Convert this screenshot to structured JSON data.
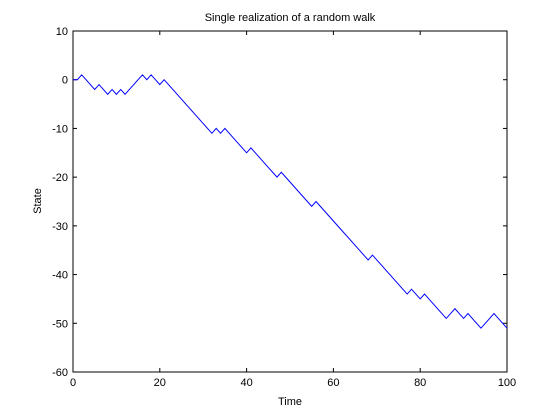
{
  "chart_data": {
    "type": "line",
    "title": "Single realization of a random walk",
    "xlabel": "Time",
    "ylabel": "State",
    "xlim": [
      0,
      100
    ],
    "ylim": [
      -60,
      10
    ],
    "xticks": [
      0,
      20,
      40,
      60,
      80,
      100
    ],
    "yticks": [
      10,
      0,
      -10,
      -20,
      -30,
      -40,
      -50,
      -60
    ],
    "grid": false,
    "series": [
      {
        "color": "#0000ff",
        "x": [
          0,
          1,
          2,
          3,
          4,
          5,
          6,
          7,
          8,
          9,
          10,
          11,
          12,
          13,
          14,
          15,
          16,
          17,
          18,
          19,
          20,
          21,
          22,
          23,
          24,
          25,
          26,
          27,
          28,
          29,
          30,
          31,
          32,
          33,
          34,
          35,
          36,
          37,
          38,
          39,
          40,
          41,
          42,
          43,
          44,
          45,
          46,
          47,
          48,
          49,
          50,
          51,
          52,
          53,
          54,
          55,
          56,
          57,
          58,
          59,
          60,
          61,
          62,
          63,
          64,
          65,
          66,
          67,
          68,
          69,
          70,
          71,
          72,
          73,
          74,
          75,
          76,
          77,
          78,
          79,
          80,
          81,
          82,
          83,
          84,
          85,
          86,
          87,
          88,
          89,
          90,
          91,
          92,
          93,
          94,
          95,
          96,
          97,
          98,
          99,
          100
        ],
        "values": [
          0,
          0,
          1,
          0,
          -1,
          -2,
          -1,
          -2,
          -3,
          -2,
          -3,
          -2,
          -3,
          -2,
          -1,
          0,
          1,
          0,
          1,
          0,
          -1,
          0,
          -1,
          -2,
          -3,
          -4,
          -5,
          -6,
          -7,
          -8,
          -9,
          -10,
          -11,
          -10,
          -11,
          -10,
          -11,
          -12,
          -13,
          -14,
          -15,
          -14,
          -15,
          -16,
          -17,
          -18,
          -19,
          -20,
          -19,
          -20,
          -21,
          -22,
          -23,
          -24,
          -25,
          -26,
          -25,
          -26,
          -27,
          -28,
          -29,
          -30,
          -31,
          -32,
          -33,
          -34,
          -35,
          -36,
          -37,
          -36,
          -37,
          -38,
          -39,
          -40,
          -41,
          -42,
          -43,
          -44,
          -43,
          -44,
          -45,
          -44,
          -45,
          -46,
          -47,
          -48,
          -49,
          -48,
          -47,
          -48,
          -49,
          -48,
          -49,
          -50,
          -51,
          -50,
          -49,
          -48,
          -49,
          -50,
          -51
        ]
      }
    ]
  }
}
